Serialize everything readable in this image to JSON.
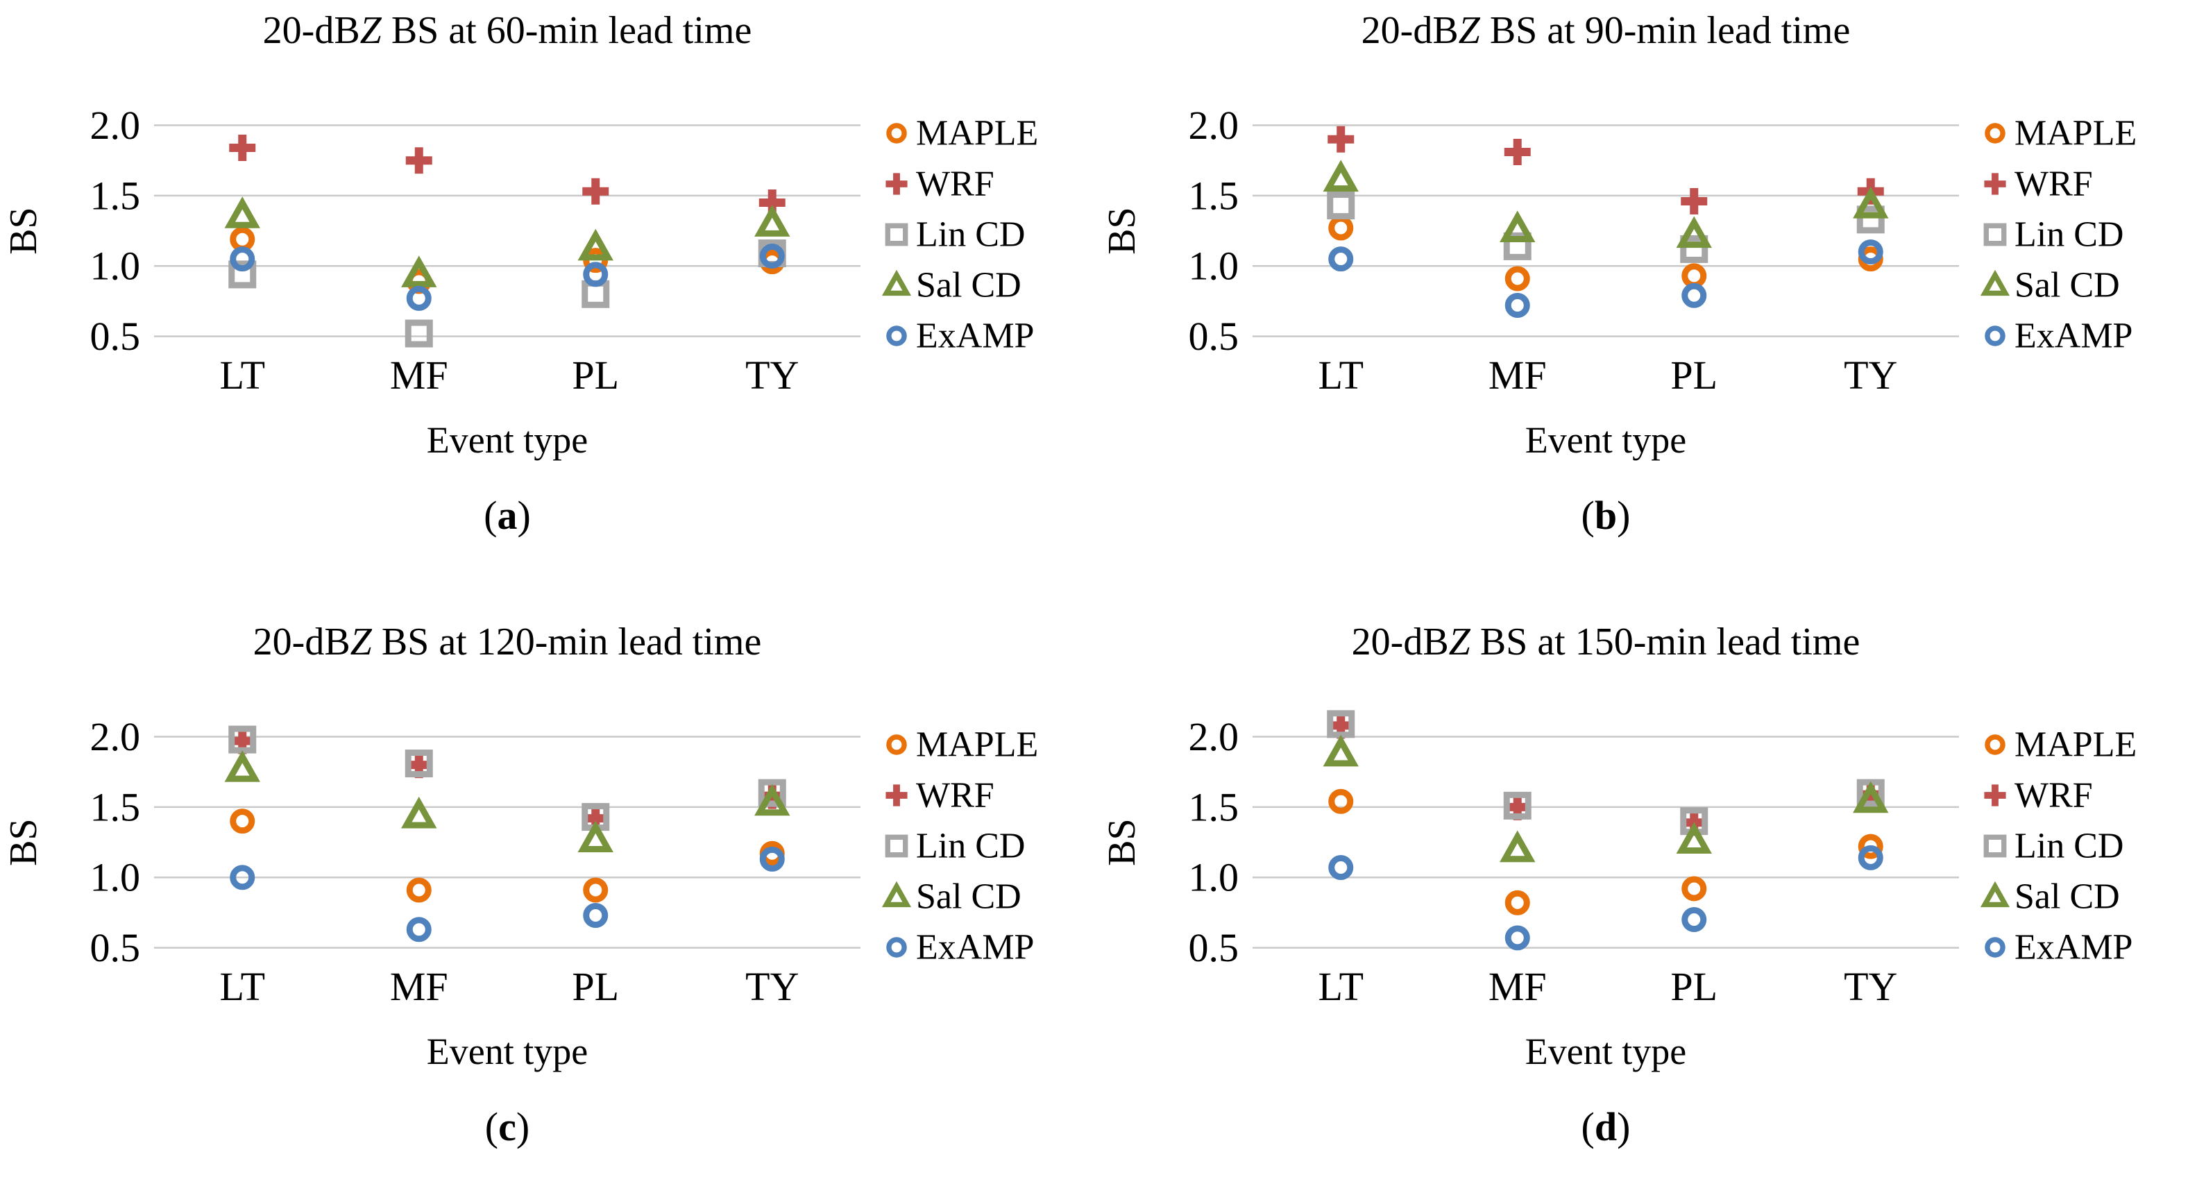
{
  "figure": {
    "background": "#FFFFFF",
    "text_color": "#000000",
    "gridline_color": "#C9C9C9",
    "xlabel": "Event type",
    "ylabel": "BS",
    "categories": [
      "LT",
      "MF",
      "PL",
      "TY"
    ],
    "ytick_labels": [
      "2.0",
      "1.5",
      "1.0",
      "0.5"
    ],
    "yticks": [
      2.0,
      1.5,
      1.0,
      0.5
    ],
    "ylim": [
      0.35,
      2.2
    ],
    "legend_position": "right",
    "grid": "horizontal-only",
    "series_colors": {
      "MAPLE": "#E8710A",
      "WRF": "#C0504D",
      "Lin CD": "#A6A6A6",
      "Sal CD": "#77933C",
      "ExAMP": "#4F81BD"
    },
    "series_markers": {
      "MAPLE": "circle",
      "WRF": "plus",
      "Lin CD": "square",
      "Sal CD": "triangle",
      "ExAMP": "circle"
    }
  },
  "chart_data": [
    {
      "type": "scatter",
      "title": "20-dBZ BS at 60-min lead time",
      "caption": "(a)",
      "caption_letter": "a",
      "lead_time_min": 60,
      "xlabel": "Event type",
      "ylabel": "BS",
      "categories": [
        "LT",
        "MF",
        "PL",
        "TY"
      ],
      "ylim": [
        0.35,
        2.2
      ],
      "series": [
        {
          "name": "MAPLE",
          "marker": "circle",
          "color": "#E8710A",
          "values": [
            1.19,
            0.89,
            1.04,
            1.03
          ]
        },
        {
          "name": "WRF",
          "marker": "plus",
          "color": "#C0504D",
          "values": [
            1.84,
            1.75,
            1.53,
            1.45
          ]
        },
        {
          "name": "Lin CD",
          "marker": "square",
          "color": "#A6A6A6",
          "values": [
            0.94,
            0.52,
            0.8,
            1.09
          ]
        },
        {
          "name": "Sal CD",
          "marker": "triangle",
          "color": "#77933C",
          "values": [
            1.36,
            0.94,
            1.13,
            1.3
          ]
        },
        {
          "name": "ExAMP",
          "marker": "circle",
          "color": "#4F81BD",
          "values": [
            1.05,
            0.77,
            0.94,
            1.07
          ]
        }
      ]
    },
    {
      "type": "scatter",
      "title": "20-dBZ BS at 90-min lead time",
      "caption": "(b)",
      "caption_letter": "b",
      "lead_time_min": 90,
      "xlabel": "Event type",
      "ylabel": "BS",
      "categories": [
        "LT",
        "MF",
        "PL",
        "TY"
      ],
      "ylim": [
        0.35,
        2.2
      ],
      "series": [
        {
          "name": "MAPLE",
          "marker": "circle",
          "color": "#E8710A",
          "values": [
            1.27,
            0.91,
            0.93,
            1.05
          ]
        },
        {
          "name": "WRF",
          "marker": "plus",
          "color": "#C0504D",
          "values": [
            1.9,
            1.81,
            1.46,
            1.53
          ]
        },
        {
          "name": "Lin CD",
          "marker": "square",
          "color": "#A6A6A6",
          "values": [
            1.43,
            1.14,
            1.12,
            1.33
          ]
        },
        {
          "name": "Sal CD",
          "marker": "triangle",
          "color": "#77933C",
          "values": [
            1.62,
            1.26,
            1.22,
            1.43
          ]
        },
        {
          "name": "ExAMP",
          "marker": "circle",
          "color": "#4F81BD",
          "values": [
            1.05,
            0.72,
            0.79,
            1.1
          ]
        }
      ]
    },
    {
      "type": "scatter",
      "title": "20-dBZ BS at 120-min lead time",
      "caption": "(c)",
      "caption_letter": "c",
      "lead_time_min": 120,
      "xlabel": "Event type",
      "ylabel": "BS",
      "categories": [
        "LT",
        "MF",
        "PL",
        "TY"
      ],
      "ylim": [
        0.35,
        2.2
      ],
      "series": [
        {
          "name": "MAPLE",
          "marker": "circle",
          "color": "#E8710A",
          "values": [
            1.4,
            0.91,
            0.91,
            1.17
          ]
        },
        {
          "name": "WRF",
          "marker": "plus",
          "color": "#C0504D",
          "values": [
            1.97,
            1.8,
            1.42,
            1.58
          ]
        },
        {
          "name": "Lin CD",
          "marker": "square",
          "color": "#A6A6A6",
          "values": [
            1.98,
            1.81,
            1.43,
            1.6
          ]
        },
        {
          "name": "Sal CD",
          "marker": "triangle",
          "color": "#77933C",
          "values": [
            1.77,
            1.44,
            1.27,
            1.53
          ]
        },
        {
          "name": "ExAMP",
          "marker": "circle",
          "color": "#4F81BD",
          "values": [
            1.0,
            0.63,
            0.73,
            1.13
          ]
        }
      ]
    },
    {
      "type": "scatter",
      "title": "20-dBZ BS at 150-min lead time",
      "caption": "(d)",
      "caption_letter": "d",
      "lead_time_min": 150,
      "xlabel": "Event type",
      "ylabel": "BS",
      "categories": [
        "LT",
        "MF",
        "PL",
        "TY"
      ],
      "ylim": [
        0.35,
        2.2
      ],
      "series": [
        {
          "name": "MAPLE",
          "marker": "circle",
          "color": "#E8710A",
          "values": [
            1.54,
            0.82,
            0.92,
            1.22
          ]
        },
        {
          "name": "WRF",
          "marker": "plus",
          "color": "#C0504D",
          "values": [
            2.08,
            1.5,
            1.39,
            1.59
          ]
        },
        {
          "name": "Lin CD",
          "marker": "square",
          "color": "#A6A6A6",
          "values": [
            2.09,
            1.51,
            1.4,
            1.6
          ]
        },
        {
          "name": "Sal CD",
          "marker": "triangle",
          "color": "#77933C",
          "values": [
            1.88,
            1.2,
            1.26,
            1.55
          ]
        },
        {
          "name": "ExAMP",
          "marker": "circle",
          "color": "#4F81BD",
          "values": [
            1.07,
            0.57,
            0.7,
            1.14
          ]
        }
      ]
    }
  ]
}
